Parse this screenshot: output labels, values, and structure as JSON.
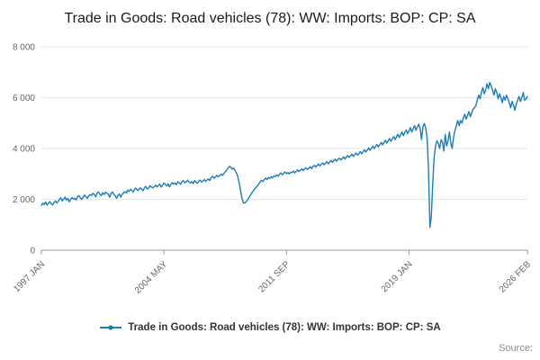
{
  "page": {
    "title": "Trade in Goods: Road vehicles (78): WW: Imports: BOP: CP: SA",
    "source_label": "Source:"
  },
  "legend": {
    "items": [
      {
        "label": "Trade in Goods: Road vehicles (78): WW: Imports: BOP: CP: SA",
        "color": "#1a7db6"
      }
    ]
  },
  "colors": {
    "line": "#1a7db6",
    "grid": "#e6e6e6",
    "axis": "#999999",
    "tick_label": "#666666"
  },
  "chart_data": {
    "type": "line",
    "title": "Trade in Goods: Road vehicles (78): WW: Imports: BOP: CP: SA",
    "xlabel": "",
    "ylabel": "",
    "x_start": "1997 JAN",
    "x_end": "2026 FEB",
    "x_frequency": "monthly",
    "ylim": [
      0,
      8000
    ],
    "grid": true,
    "legend_position": "bottom",
    "yticks": [
      {
        "label": "0",
        "value": 0
      },
      {
        "label": "2 000",
        "value": 2000
      },
      {
        "label": "4 000",
        "value": 4000
      },
      {
        "label": "6 000",
        "value": 6000
      },
      {
        "label": "8 000",
        "value": 8000
      }
    ],
    "xticks": [
      {
        "label": "1997 JAN",
        "index": 0
      },
      {
        "label": "2004 MAY",
        "index": 88
      },
      {
        "label": "2011 SEP",
        "index": 176
      },
      {
        "label": "2019 JAN",
        "index": 264
      },
      {
        "label": "2026 FEB",
        "index": 349
      }
    ],
    "series": [
      {
        "name": "Trade in Goods: Road vehicles (78): WW: Imports: BOP: CP: SA",
        "color": "#1a7db6",
        "values": [
          1760,
          1850,
          1800,
          1900,
          1770,
          1840,
          1910,
          1830,
          1780,
          1870,
          1940,
          1860,
          1920,
          2000,
          2060,
          1940,
          2010,
          2090,
          1970,
          2040,
          1900,
          2000,
          2070,
          2010,
          2040,
          1980,
          2110,
          2150,
          2050,
          2000,
          2090,
          2170,
          2110,
          2040,
          2140,
          2190,
          2150,
          2240,
          2190,
          2100,
          2250,
          2290,
          2200,
          2140,
          2260,
          2190,
          2280,
          2240,
          2200,
          2090,
          2240,
          2290,
          2190,
          2140,
          2040,
          2160,
          2210,
          2090,
          2190,
          2260,
          2300,
          2250,
          2360,
          2310,
          2400,
          2340,
          2290,
          2410,
          2440,
          2350,
          2390,
          2450,
          2400,
          2340,
          2460,
          2510,
          2410,
          2440,
          2540,
          2490,
          2450,
          2500,
          2560,
          2490,
          2540,
          2600,
          2480,
          2550,
          2640,
          2590,
          2530,
          2610,
          2490,
          2590,
          2660,
          2600,
          2640,
          2580,
          2690,
          2640,
          2590,
          2700,
          2740,
          2650,
          2690,
          2750,
          2690,
          2640,
          2700,
          2620,
          2740,
          2680,
          2630,
          2720,
          2760,
          2680,
          2720,
          2780,
          2710,
          2760,
          2800,
          2740,
          2860,
          2910,
          2830,
          2880,
          2940,
          2890,
          2930,
          2990,
          2940,
          3010,
          3080,
          3150,
          3220,
          3300,
          3260,
          3190,
          3230,
          3140,
          3050,
          2900,
          2650,
          2350,
          2050,
          1870,
          1850,
          1900,
          1980,
          2060,
          2150,
          2250,
          2320,
          2400,
          2460,
          2520,
          2600,
          2680,
          2750,
          2700,
          2780,
          2840,
          2780,
          2860,
          2820,
          2890,
          2850,
          2920,
          2900,
          2960,
          2910,
          2990,
          3040,
          2970,
          3030,
          3080,
          3010,
          3060,
          3000,
          3070,
          3050,
          3110,
          3040,
          3100,
          3160,
          3090,
          3150,
          3200,
          3130,
          3190,
          3240,
          3170,
          3220,
          3280,
          3210,
          3290,
          3340,
          3270,
          3330,
          3390,
          3310,
          3380,
          3430,
          3360,
          3420,
          3480,
          3400,
          3470,
          3530,
          3460,
          3520,
          3580,
          3500,
          3570,
          3620,
          3550,
          3600,
          3670,
          3590,
          3660,
          3720,
          3650,
          3710,
          3780,
          3690,
          3760,
          3820,
          3740,
          3800,
          3880,
          3790,
          3870,
          3950,
          3860,
          3940,
          4020,
          3930,
          4010,
          4090,
          4000,
          4080,
          4160,
          4060,
          4150,
          4240,
          4140,
          4230,
          4320,
          4210,
          4300,
          4390,
          4280,
          4380,
          4470,
          4350,
          4460,
          4560,
          4430,
          4550,
          4650,
          4510,
          4630,
          4730,
          4580,
          4700,
          4820,
          4650,
          4780,
          4900,
          4720,
          4850,
          4960,
          4760,
          4350,
          4870,
          4980,
          4800,
          4400,
          3200,
          900,
          1300,
          2600,
          3600,
          4100,
          4300,
          4200,
          4000,
          4350,
          4250,
          3900,
          4550,
          4100,
          4300,
          4650,
          4200,
          4000,
          4450,
          4700,
          4900,
          5100,
          4900,
          5100,
          5000,
          5200,
          5350,
          5150,
          5300,
          5450,
          5250,
          5400,
          5550,
          5600,
          5700,
          5900,
          6100,
          5950,
          6200,
          6400,
          6150,
          6300,
          6550,
          6350,
          6600,
          6450,
          6300,
          6100,
          6350,
          6200,
          5950,
          6150,
          6000,
          5800,
          6050,
          5900,
          6100,
          5950,
          5800,
          5600,
          5850,
          5700,
          5500,
          5750,
          5900,
          6050,
          5850,
          6000,
          6200,
          5900,
          5950,
          6050
        ]
      }
    ]
  }
}
